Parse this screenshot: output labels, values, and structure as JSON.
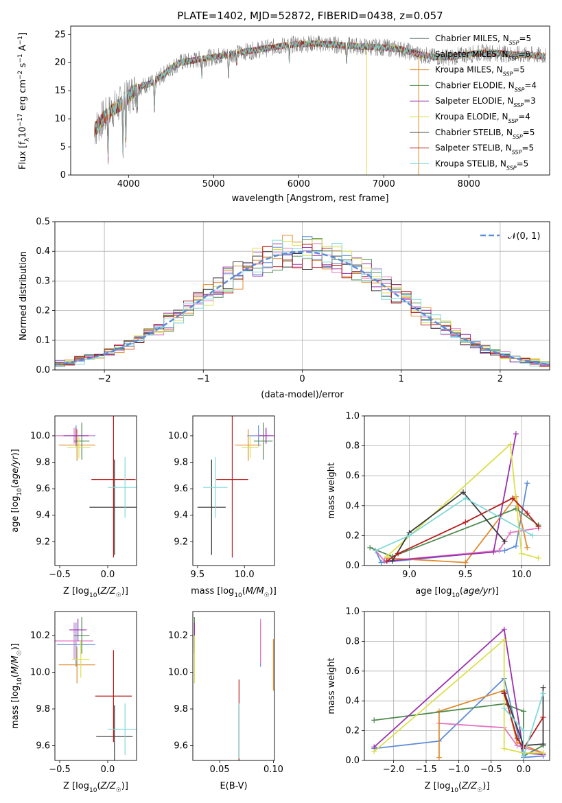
{
  "chart_data": [
    {
      "type": "line",
      "title": "PLATE=1402, MJD=52872, FIBERID=0438, z=0.057",
      "xlabel": "wavelength [Angstrom, rest frame]",
      "ylabel": "Flux [f_λ10^-17 erg cm^-2 s^-1 A^-1]",
      "xlim": [
        3320,
        8950
      ],
      "ylim": [
        0,
        26.5
      ],
      "xticks": [
        4000,
        5000,
        6000,
        7000,
        8000
      ],
      "yticks": [
        0,
        5,
        10,
        15,
        20,
        25
      ],
      "grid": false,
      "legend_position": "right",
      "spectrum_wavelength_range": [
        3600,
        8900
      ],
      "spectrum_shape_knots": [
        [
          3600,
          8
        ],
        [
          3700,
          10
        ],
        [
          3800,
          11.5
        ],
        [
          3900,
          12.5
        ],
        [
          4000,
          14
        ],
        [
          4100,
          15.5
        ],
        [
          4200,
          16
        ],
        [
          4300,
          16.5
        ],
        [
          4400,
          17.8
        ],
        [
          4500,
          19
        ],
        [
          4600,
          20
        ],
        [
          4800,
          20.5
        ],
        [
          5000,
          21
        ],
        [
          5200,
          21.5
        ],
        [
          5400,
          22
        ],
        [
          5600,
          22.5
        ],
        [
          5800,
          23
        ],
        [
          6000,
          23.3
        ],
        [
          6200,
          23.4
        ],
        [
          6400,
          23.2
        ],
        [
          6600,
          23
        ],
        [
          6800,
          22.8
        ],
        [
          7000,
          22.7
        ],
        [
          7200,
          22.4
        ],
        [
          7400,
          21.5
        ],
        [
          7600,
          21
        ],
        [
          7800,
          21
        ],
        [
          8000,
          21.5
        ],
        [
          8200,
          21.8
        ],
        [
          8400,
          21.6
        ],
        [
          8600,
          21.4
        ],
        [
          8900,
          21.2
        ]
      ],
      "absorption_features": [
        {
          "wavelength": 3760,
          "depth": 8
        },
        {
          "wavelength": 3934,
          "depth": 9
        },
        {
          "wavelength": 3969,
          "depth": 8
        },
        {
          "wavelength": 4102,
          "depth": 4
        },
        {
          "wavelength": 4304,
          "depth": 5
        },
        {
          "wavelength": 4861,
          "depth": 3
        },
        {
          "wavelength": 5175,
          "depth": 4
        },
        {
          "wavelength": 5270,
          "depth": 2
        },
        {
          "wavelength": 5890,
          "depth": 3
        },
        {
          "wavelength": 6563,
          "depth": 3
        }
      ],
      "series": [
        {
          "name": "Chabrier MILES, N_SSP=5",
          "color": "#2f4f4f"
        },
        {
          "name": "Salpeter MILES, N_SSP=6",
          "color": "#e377c2"
        },
        {
          "name": "Kroupa MILES, N_SSP=5",
          "color": "#e08a2a"
        },
        {
          "name": "Chabrier ELODIE, N_SSP=4",
          "color": "#4f8a4f"
        },
        {
          "name": "Salpeter ELODIE, N_SSP=3",
          "color": "#9b2fae"
        },
        {
          "name": "Kroupa ELODIE, N_SSP=4",
          "color": "#dbe04a"
        },
        {
          "name": "Chabrier STELIB, N_SSP=5",
          "color": "#3a3a3a"
        },
        {
          "name": "Salpeter STELIB, N_SSP=5",
          "color": "#b71c1c"
        },
        {
          "name": "Kroupa STELIB, N_SSP=5",
          "color": "#7fd9d9"
        }
      ],
      "legend": [
        {
          "main": "Chabrier MILES, N",
          "sub": "SSP",
          "tail": "=5"
        },
        {
          "main": "Salpeter MILES, N",
          "sub": "SSP",
          "tail": "=6"
        },
        {
          "main": "Kroupa MILES, N",
          "sub": "SSP",
          "tail": "=5"
        },
        {
          "main": "Chabrier ELODIE, N",
          "sub": "SSP",
          "tail": "=4"
        },
        {
          "main": "Salpeter ELODIE, N",
          "sub": "SSP",
          "tail": "=3"
        },
        {
          "main": "Kroupa ELODIE, N",
          "sub": "SSP",
          "tail": "=4"
        },
        {
          "main": "Chabrier STELIB, N",
          "sub": "SSP",
          "tail": "=5"
        },
        {
          "main": "Salpeter STELIB, N",
          "sub": "SSP",
          "tail": "=5"
        },
        {
          "main": "Kroupa STELIB, N",
          "sub": "SSP",
          "tail": "=5"
        }
      ],
      "data_color": "#808080"
    },
    {
      "type": "line",
      "xlabel": "(data-model)/error",
      "ylabel": "Normed distribution",
      "xlim": [
        -2.5,
        2.5
      ],
      "ylim": [
        0,
        0.5
      ],
      "xticks": [
        -2,
        -1,
        0,
        1,
        2
      ],
      "yticks": [
        0.0,
        0.1,
        0.2,
        0.3,
        0.4,
        0.5
      ],
      "grid": true,
      "legend_position": "top-right",
      "histogram_bin_width": 0.1,
      "reference_curve": {
        "name": "𝒩(0, 1)",
        "mean": 0,
        "sigma": 1,
        "color": "#5b8bd9"
      },
      "histogram_colors": [
        "#5b8bd9",
        "#e377c2",
        "#e08a2a",
        "#4f8a4f",
        "#9b2fae",
        "#dbe04a",
        "#3a3a3a",
        "#b71c1c",
        "#7fd9d9"
      ]
    },
    {
      "type": "scatter",
      "xlabel": "Z [log10(Z/Z☉)]",
      "ylabel": "age  [log10(age/yr)]",
      "xlim": [
        -0.55,
        0.3
      ],
      "ylim": [
        9.02,
        10.15
      ],
      "xticks": [
        -0.5,
        0.0
      ],
      "yticks": [
        9.2,
        9.4,
        9.6,
        9.8,
        10.0
      ],
      "points": [
        {
          "x": -0.33,
          "y": 10.0,
          "xerr": 0.2,
          "yerr": 0.08,
          "color": "#5b8bd9"
        },
        {
          "x": -0.35,
          "y": 10.0,
          "xerr": 0.2,
          "yerr": 0.06,
          "color": "#e377c2"
        },
        {
          "x": -0.32,
          "y": 9.93,
          "xerr": 0.19,
          "yerr": 0.12,
          "color": "#e08a2a"
        },
        {
          "x": -0.27,
          "y": 9.96,
          "xerr": 0.08,
          "yerr": 0.14,
          "color": "#4f8a4f"
        },
        {
          "x": -0.33,
          "y": 10.0,
          "xerr": 0.13,
          "yerr": 0.06,
          "color": "#9b2fae"
        },
        {
          "x": -0.3,
          "y": 9.91,
          "xerr": 0.12,
          "yerr": 0.08,
          "color": "#dbe04a"
        },
        {
          "x": 0.07,
          "y": 9.46,
          "xerr": 0.26,
          "yerr": 0.36,
          "color": "#3a3a3a"
        },
        {
          "x": 0.06,
          "y": 9.67,
          "xerr": 0.23,
          "yerr": 0.59,
          "color": "#b71c1c"
        },
        {
          "x": 0.18,
          "y": 9.61,
          "xerr": 0.18,
          "yerr": 0.23,
          "color": "#7fd9d9"
        }
      ]
    },
    {
      "type": "scatter",
      "xlabel": "mass [log10(M/M☉)]",
      "xlim": [
        9.45,
        10.32
      ],
      "ylim": [
        9.02,
        10.15
      ],
      "xticks": [
        9.5,
        10.0
      ],
      "yticks": [
        9.2,
        9.4,
        9.6,
        9.8,
        10.0
      ],
      "points": [
        {
          "x": 10.15,
          "y": 10.0,
          "xerr": 0.12,
          "yerr": 0.08,
          "color": "#5b8bd9"
        },
        {
          "x": 10.23,
          "y": 10.0,
          "xerr": 0.1,
          "yerr": 0.06,
          "color": "#e377c2"
        },
        {
          "x": 10.04,
          "y": 9.93,
          "xerr": 0.14,
          "yerr": 0.12,
          "color": "#e08a2a"
        },
        {
          "x": 10.2,
          "y": 9.96,
          "xerr": 0.1,
          "yerr": 0.14,
          "color": "#4f8a4f"
        },
        {
          "x": 10.23,
          "y": 10.0,
          "xerr": 0.08,
          "yerr": 0.06,
          "color": "#9b2fae"
        },
        {
          "x": 10.06,
          "y": 9.91,
          "xerr": 0.09,
          "yerr": 0.08,
          "color": "#dbe04a"
        },
        {
          "x": 9.65,
          "y": 9.46,
          "xerr": 0.15,
          "yerr": 0.36,
          "color": "#3a3a3a"
        },
        {
          "x": 9.87,
          "y": 9.67,
          "xerr": 0.17,
          "yerr": 0.59,
          "color": "#b71c1c"
        },
        {
          "x": 9.69,
          "y": 9.61,
          "xerr": 0.13,
          "yerr": 0.23,
          "color": "#7fd9d9"
        }
      ]
    },
    {
      "type": "line",
      "xlabel": "age  [log10(age/yr)]",
      "ylabel": "mass weight",
      "xlim": [
        8.6,
        10.25
      ],
      "ylim": [
        0,
        1.0
      ],
      "xticks": [
        9.0,
        9.5,
        10.0
      ],
      "yticks": [
        0.0,
        0.2,
        0.4,
        0.6,
        0.8,
        1.0
      ],
      "grid": true,
      "series": [
        {
          "color": "#5b8bd9",
          "x": [
            8.7,
            8.75,
            9.85,
            9.95,
            10.05
          ],
          "y": [
            0.1,
            0.02,
            0.1,
            0.13,
            0.55
          ]
        },
        {
          "color": "#e377c2",
          "x": [
            8.7,
            8.78,
            9.8,
            9.9,
            10.15
          ],
          "y": [
            0.1,
            0.03,
            0.1,
            0.22,
            0.25
          ]
        },
        {
          "color": "#e08a2a",
          "x": [
            8.8,
            9.5,
            9.95,
            10.05
          ],
          "y": [
            0.05,
            0.02,
            0.46,
            0.12
          ]
        },
        {
          "color": "#4f8a4f",
          "x": [
            8.65,
            8.85,
            9.95,
            10.15
          ],
          "y": [
            0.12,
            0.06,
            0.38,
            0.27
          ]
        },
        {
          "color": "#9b2fae",
          "x": [
            8.8,
            9.75,
            9.95
          ],
          "y": [
            0.03,
            0.09,
            0.88
          ]
        },
        {
          "color": "#dbe04a",
          "x": [
            8.8,
            9.9,
            10.0,
            10.15
          ],
          "y": [
            0.06,
            0.81,
            0.08,
            0.05
          ]
        },
        {
          "color": "#3a3a3a",
          "x": [
            8.85,
            9.0,
            9.48,
            9.85
          ],
          "y": [
            0.03,
            0.22,
            0.49,
            0.16
          ]
        },
        {
          "color": "#b71c1c",
          "x": [
            8.8,
            8.9,
            9.5,
            9.92,
            10.05,
            10.15
          ],
          "y": [
            0.03,
            0.08,
            0.29,
            0.45,
            0.35,
            0.26
          ]
        },
        {
          "color": "#7fd9d9",
          "x": [
            8.7,
            9.0,
            9.5,
            10.1
          ],
          "y": [
            0.1,
            0.2,
            0.45,
            0.2
          ]
        }
      ]
    },
    {
      "type": "scatter",
      "xlabel": "Z [log10(Z/Z☉)]",
      "ylabel": "mass [log10(M/M☉)]",
      "xlim": [
        -0.55,
        0.3
      ],
      "ylim": [
        9.52,
        10.33
      ],
      "xticks": [
        -0.5,
        0.0
      ],
      "yticks": [
        9.6,
        9.8,
        10.0,
        10.2
      ],
      "points": [
        {
          "x": -0.33,
          "y": 10.15,
          "xerr": 0.2,
          "yerr": 0.12,
          "color": "#5b8bd9"
        },
        {
          "x": -0.35,
          "y": 10.17,
          "xerr": 0.2,
          "yerr": 0.1,
          "color": "#e377c2"
        },
        {
          "x": -0.32,
          "y": 10.04,
          "xerr": 0.19,
          "yerr": 0.1,
          "color": "#e08a2a"
        },
        {
          "x": -0.27,
          "y": 10.2,
          "xerr": 0.08,
          "yerr": 0.1,
          "color": "#4f8a4f"
        },
        {
          "x": -0.31,
          "y": 10.23,
          "xerr": 0.09,
          "yerr": 0.06,
          "color": "#9b2fae"
        },
        {
          "x": -0.28,
          "y": 10.07,
          "xerr": 0.09,
          "yerr": 0.1,
          "color": "#dbe04a"
        },
        {
          "x": 0.07,
          "y": 9.65,
          "xerr": 0.19,
          "yerr": 0.17,
          "color": "#3a3a3a"
        },
        {
          "x": 0.06,
          "y": 9.87,
          "xerr": 0.19,
          "yerr": 0.25,
          "color": "#b71c1c"
        },
        {
          "x": 0.18,
          "y": 9.69,
          "xerr": 0.18,
          "yerr": 0.14,
          "color": "#7fd9d9"
        }
      ]
    },
    {
      "type": "scatter",
      "xlabel": "E(B-V)",
      "xlim": [
        0.025,
        0.101
      ],
      "ylim": [
        9.52,
        10.33
      ],
      "xticks": [
        0.05,
        0.1
      ],
      "yticks": [
        9.6,
        9.8,
        10.0,
        10.2
      ],
      "points": [
        {
          "x": 0.088,
          "y": 10.15,
          "yerr": 0.12,
          "color": "#5b8bd9"
        },
        {
          "x": 0.088,
          "y": 10.17,
          "yerr": 0.12,
          "color": "#e377c2"
        },
        {
          "x": 0.1,
          "y": 10.04,
          "yerr": 0.14,
          "color": "#e08a2a"
        },
        {
          "x": 0.0265,
          "y": 10.2,
          "yerr": 0.1,
          "color": "#4f8a4f"
        },
        {
          "x": 0.0265,
          "y": 10.2,
          "yerr": 0.07,
          "color": "#9b2fae"
        },
        {
          "x": 0.0265,
          "y": 10.07,
          "yerr": 0.13,
          "color": "#dbe04a"
        },
        {
          "x": 0.068,
          "y": 9.65,
          "yerr": 0.17,
          "color": "#3a3a3a"
        },
        {
          "x": 0.068,
          "y": 9.73,
          "yerr": 0.23,
          "color": "#b71c1c"
        },
        {
          "x": 0.068,
          "y": 9.68,
          "yerr": 0.15,
          "color": "#7fd9d9"
        }
      ]
    },
    {
      "type": "line",
      "xlabel": "Z [log10(Z/Z☉)]",
      "ylabel": "mass weight",
      "xlim": [
        -2.45,
        0.4
      ],
      "ylim": [
        0,
        1.0
      ],
      "xticks": [
        -2.0,
        -1.5,
        -1.0,
        -0.5,
        0.0
      ],
      "yticks": [
        0.0,
        0.2,
        0.4,
        0.6,
        0.8,
        1.0
      ],
      "grid": true,
      "series": [
        {
          "color": "#5b8bd9",
          "x": [
            -2.3,
            -1.3,
            -0.3,
            0.0,
            0.3
          ],
          "y": [
            0.08,
            0.13,
            0.55,
            0.02,
            0.03
          ]
        },
        {
          "color": "#e377c2",
          "x": [
            -1.3,
            -0.3,
            -0.1,
            0.3
          ],
          "y": [
            0.25,
            0.22,
            0.1,
            0.05
          ]
        },
        {
          "color": "#e08a2a",
          "x": [
            -1.3,
            -1.3,
            -0.3,
            -0.1,
            0.3
          ],
          "y": [
            0.02,
            0.33,
            0.47,
            0.12,
            0.05
          ]
        },
        {
          "color": "#4f8a4f",
          "x": [
            -2.3,
            -0.3,
            0.0,
            0.0,
            0.3
          ],
          "y": [
            0.27,
            0.38,
            0.33,
            0.03,
            0.1
          ]
        },
        {
          "color": "#9b2fae",
          "x": [
            -2.3,
            -0.3,
            0.0,
            0.3
          ],
          "y": [
            0.09,
            0.88,
            0.05,
            0.04
          ]
        },
        {
          "color": "#dbe04a",
          "x": [
            -2.3,
            -0.3,
            -0.3,
            0.0,
            0.3
          ],
          "y": [
            0.06,
            0.81,
            0.08,
            0.05,
            0.05
          ]
        },
        {
          "color": "#3a3a3a",
          "x": [
            -0.3,
            0.0,
            0.3,
            0.3
          ],
          "y": [
            0.46,
            0.1,
            0.11,
            0.49
          ]
        },
        {
          "color": "#b71c1c",
          "x": [
            -0.3,
            -0.1,
            0.0,
            0.3
          ],
          "y": [
            0.45,
            0.15,
            0.08,
            0.29
          ]
        },
        {
          "color": "#7fd9d9",
          "x": [
            -0.3,
            0.0,
            0.0,
            0.3
          ],
          "y": [
            0.35,
            0.2,
            0.03,
            0.45
          ]
        }
      ]
    }
  ]
}
